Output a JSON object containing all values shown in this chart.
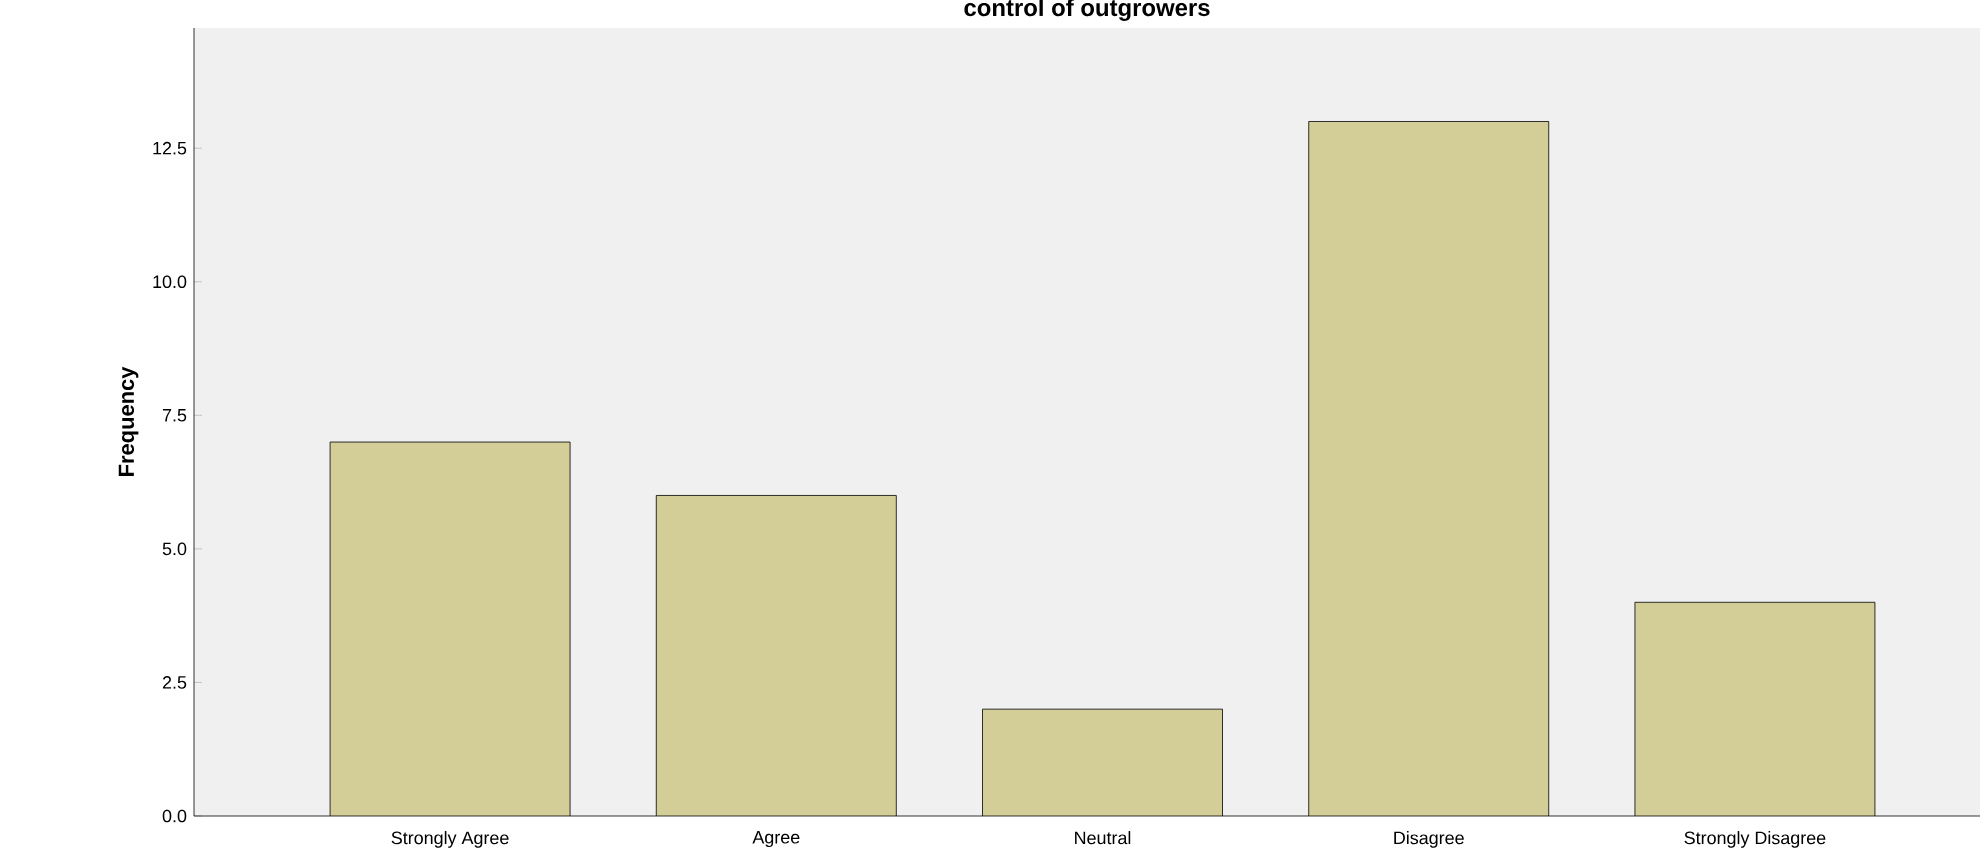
{
  "chart_data": {
    "type": "bar",
    "title": "control of outgrowers",
    "ylabel": "Frequency",
    "categories": [
      "Strongly Agree",
      "Agree",
      "Neutral",
      "Disagree",
      "Strongly Disagree"
    ],
    "values": [
      7,
      6,
      2,
      13,
      4
    ],
    "color": "#d3ce97",
    "ylim": [
      0,
      14.75
    ],
    "yticks": [
      {
        "value": 0,
        "label": "0.0"
      },
      {
        "value": 2.5,
        "label": "2.5"
      },
      {
        "value": 5,
        "label": "5.0"
      },
      {
        "value": 7.5,
        "label": "7.5"
      },
      {
        "value": 10,
        "label": "10.0"
      },
      {
        "value": 12.5,
        "label": "12.5"
      }
    ],
    "grid": false
  }
}
